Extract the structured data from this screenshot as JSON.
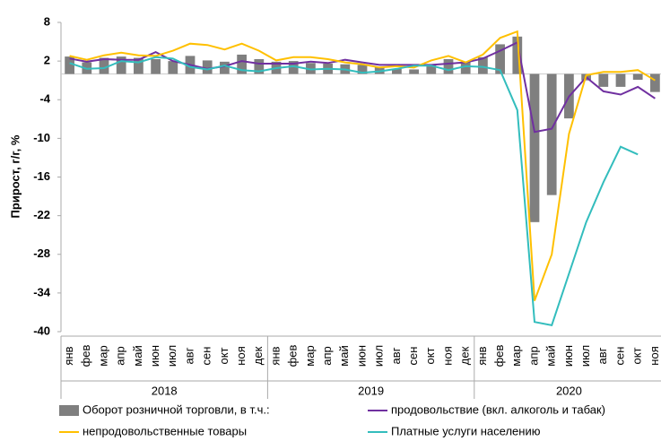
{
  "chart_data": {
    "type": "bar",
    "y_label": "Прирост, г/г, %",
    "categories": [
      "янв",
      "фев",
      "мар",
      "апр",
      "май",
      "июн",
      "июл",
      "авг",
      "сен",
      "окт",
      "ноя",
      "дек",
      "янв",
      "фев",
      "мар",
      "апр",
      "май",
      "июн",
      "июл",
      "авг",
      "сен",
      "окт",
      "ноя",
      "дек",
      "янв",
      "фев",
      "мар",
      "апр",
      "май",
      "июн",
      "июл",
      "авг",
      "сен",
      "окт",
      "ноя"
    ],
    "year_labels": [
      "2018",
      "2019",
      "2020"
    ],
    "ylim": [
      -40,
      8
    ],
    "yticks": [
      -40,
      -34,
      -28,
      -22,
      -16,
      -10,
      -4,
      2,
      8
    ],
    "grid": false,
    "series": [
      {
        "name": "Оборот розничной торговли, в т.ч.:",
        "type": "bar",
        "color": "#7f7f7f",
        "values": [
          2.7,
          1.8,
          2.5,
          2.7,
          2.5,
          2.3,
          2.0,
          2.8,
          2.1,
          1.9,
          3.0,
          2.3,
          1.9,
          2.0,
          1.7,
          1.6,
          1.5,
          1.4,
          1.1,
          0.8,
          0.7,
          1.5,
          2.3,
          1.9,
          2.6,
          4.6,
          5.8,
          -23.0,
          -18.8,
          -6.9,
          -1.0,
          -2.0,
          -2.0,
          -0.9,
          -2.8
        ]
      },
      {
        "name": "продовольствие (вкл. алкоголь и табак)",
        "type": "line",
        "color": "#7030a0",
        "values": [
          2.4,
          1.9,
          2.3,
          2.2,
          2.2,
          3.4,
          2.0,
          1.4,
          0.8,
          1.2,
          2.0,
          1.6,
          1.6,
          1.6,
          1.9,
          1.7,
          2.2,
          1.8,
          1.4,
          1.4,
          1.4,
          1.4,
          1.6,
          1.8,
          2.4,
          3.6,
          4.9,
          -9.0,
          -8.5,
          -3.5,
          -0.5,
          -2.7,
          -3.2,
          -2.0,
          -3.8
        ]
      },
      {
        "name": "непродовольственные товары",
        "type": "line",
        "color": "#ffc000",
        "values": [
          2.8,
          2.2,
          2.9,
          3.3,
          2.9,
          2.8,
          3.6,
          4.7,
          4.5,
          3.8,
          4.7,
          3.6,
          2.1,
          2.6,
          2.6,
          2.3,
          1.8,
          1.5,
          1.0,
          1.2,
          1.0,
          2.1,
          2.8,
          1.8,
          3.0,
          5.6,
          6.6,
          -35.2,
          -28.0,
          -9.3,
          -0.2,
          0.3,
          0.3,
          0.6,
          -1.0
        ]
      },
      {
        "name": "Платные услуги населению",
        "type": "line",
        "color": "#33bdbd",
        "values": [
          1.7,
          0.8,
          0.9,
          2.0,
          1.8,
          2.6,
          2.4,
          1.1,
          0.7,
          1.3,
          0.6,
          0.4,
          0.9,
          1.2,
          0.7,
          0.8,
          0.7,
          0.2,
          0.4,
          0.8,
          1.3,
          1.3,
          0.6,
          1.2,
          1.1,
          0.6,
          -5.6,
          -38.5,
          -39.0,
          -31.0,
          -23.0,
          -16.8,
          -11.3,
          -12.5,
          null
        ]
      }
    ]
  }
}
